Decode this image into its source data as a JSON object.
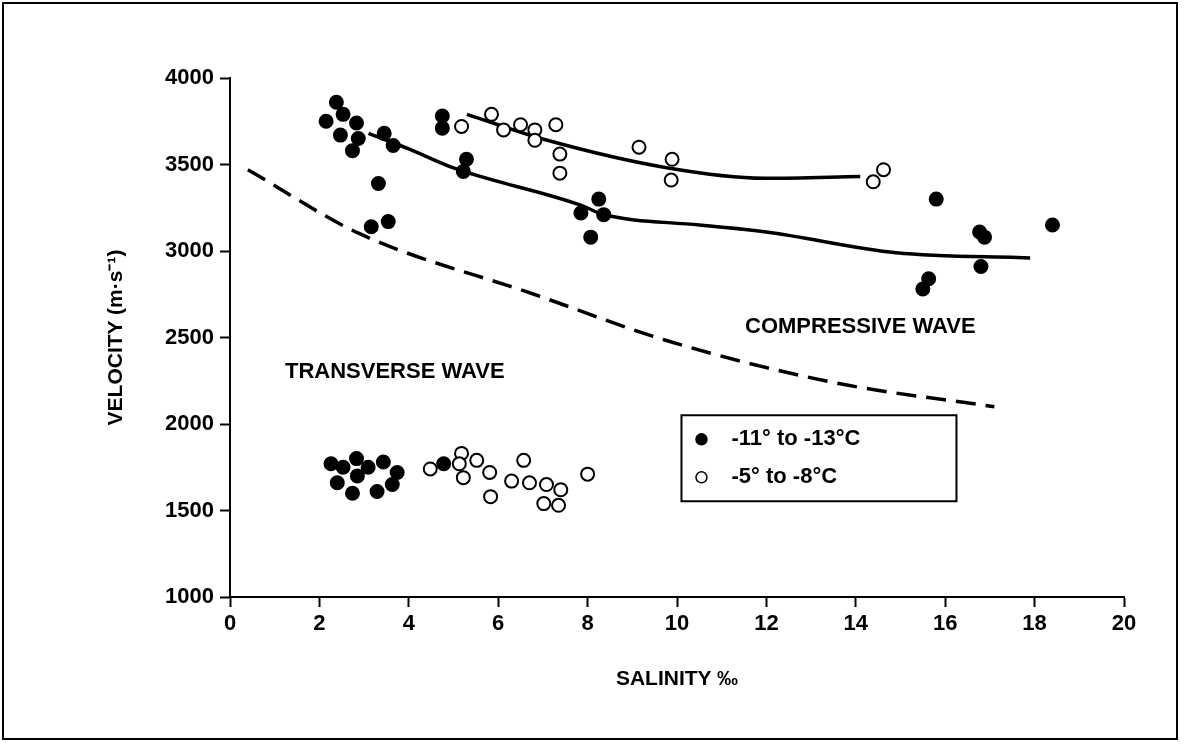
{
  "chart_data": {
    "type": "scatter",
    "xlabel": "SALINITY ‰",
    "ylabel": "VELOCITY (m·s⁻¹)",
    "xlim": [
      0,
      20
    ],
    "ylim": [
      1000,
      4000
    ],
    "xticks": [
      0,
      2,
      4,
      6,
      8,
      10,
      12,
      14,
      16,
      18,
      20
    ],
    "yticks": [
      1000,
      1500,
      2000,
      2500,
      3000,
      3500,
      4000
    ],
    "grid": false,
    "legend": "bottom right",
    "series": [
      {
        "name": "-11° to -13°C",
        "color": "#000000",
        "marker": "circle",
        "x": [
          2.15,
          2.38,
          2.53,
          2.83,
          2.47,
          2.87,
          2.74,
          3.45,
          3.65,
          3.32,
          3.54,
          3.16,
          4.75,
          4.75,
          5.29,
          5.22,
          8.25,
          7.85,
          8.36,
          8.07,
          15.8,
          16.77,
          16.88,
          16.8,
          18.4,
          15.63,
          15.5,
          2.26,
          2.53,
          2.83,
          3.09,
          2.85,
          2.4,
          2.74,
          3.29,
          3.43,
          3.74,
          3.63,
          4.78
        ],
        "values": [
          3750,
          3860,
          3790,
          3740,
          3670,
          3650,
          3580,
          3680,
          3610,
          3390,
          3170,
          3140,
          3780,
          3710,
          3530,
          3460,
          3300,
          3220,
          3210,
          3080,
          3300,
          3110,
          3080,
          2910,
          3150,
          2840,
          2780,
          1770,
          1750,
          1800,
          1750,
          1700,
          1660,
          1600,
          1610,
          1780,
          1720,
          1650,
          1770
        ]
      },
      {
        "name": "-5° to -8°C",
        "color": "#ffffff",
        "marker": "circle",
        "x": [
          5.18,
          5.85,
          6.12,
          6.5,
          6.82,
          6.82,
          7.29,
          7.38,
          7.38,
          9.15,
          9.89,
          9.87,
          14.62,
          14.39,
          4.48,
          5.18,
          5.13,
          5.22,
          5.52,
          5.81,
          5.83,
          6.3,
          6.57,
          6.7,
          7.08,
          7.4,
          7.02,
          7.35,
          8.0
        ],
        "values": [
          3720,
          3790,
          3700,
          3730,
          3700,
          3640,
          3730,
          3560,
          3450,
          3600,
          3530,
          3410,
          3470,
          3400,
          1740,
          1830,
          1770,
          1690,
          1790,
          1720,
          1580,
          1670,
          1790,
          1660,
          1650,
          1620,
          1540,
          1530,
          1710
        ]
      },
      {
        "type": "line",
        "color": "#000000",
        "marker": "none",
        "line_style": "solid",
        "x": [
          5.3,
          7.1,
          9.8,
          12,
          14.1
        ],
        "values": [
          3790,
          3640,
          3480,
          3420,
          3430
        ]
      },
      {
        "type": "line",
        "color": "#000000",
        "marker": "none",
        "line_style": "solid",
        "x": [
          3.1,
          4.0,
          5.0,
          7.9,
          8.3,
          10.5,
          12,
          14.9,
          17.9
        ],
        "values": [
          3680,
          3590,
          3480,
          3260,
          3215,
          3150,
          3110,
          2990,
          2960
        ]
      },
      {
        "type": "line",
        "color": "#000000",
        "marker": "none",
        "line_style": "dashed",
        "x": [
          0.4,
          2.9,
          6.8,
          9.8,
          13.5,
          17.1
        ],
        "values": [
          3470,
          3100,
          2750,
          2480,
          2240,
          2100
        ]
      }
    ],
    "annotations": [
      "COMPRESSIVE WAVE",
      "TRANSVERSE WAVE"
    ]
  }
}
